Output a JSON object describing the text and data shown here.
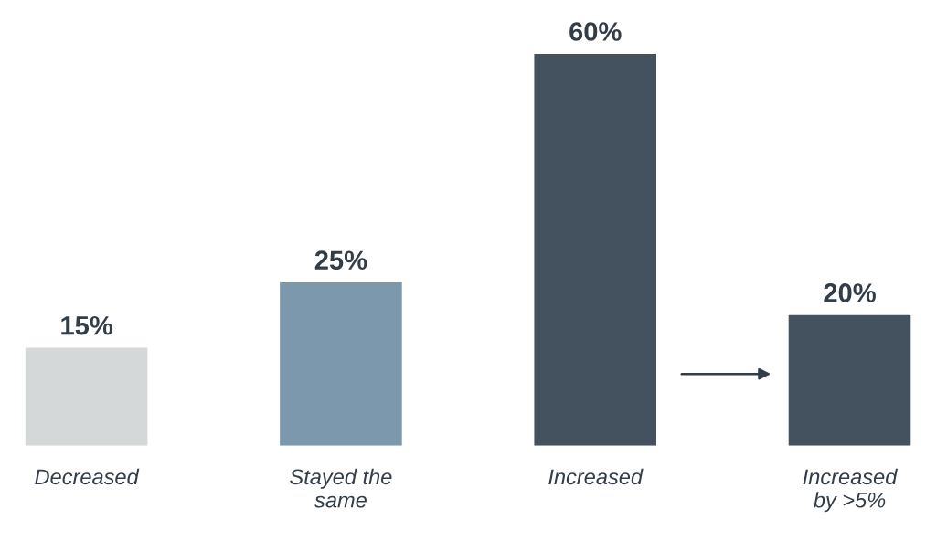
{
  "chart_data": {
    "type": "bar",
    "categories": [
      "Decreased",
      "Stayed the\nsame",
      "Increased",
      "Increased\nby >5%"
    ],
    "values": [
      15,
      25,
      60,
      20
    ],
    "colors": [
      "#d5d8d8",
      "#7b98ad",
      "#44525f",
      "#44525f"
    ],
    "value_labels": [
      "15%",
      "25%",
      "60%",
      "20%"
    ]
  }
}
